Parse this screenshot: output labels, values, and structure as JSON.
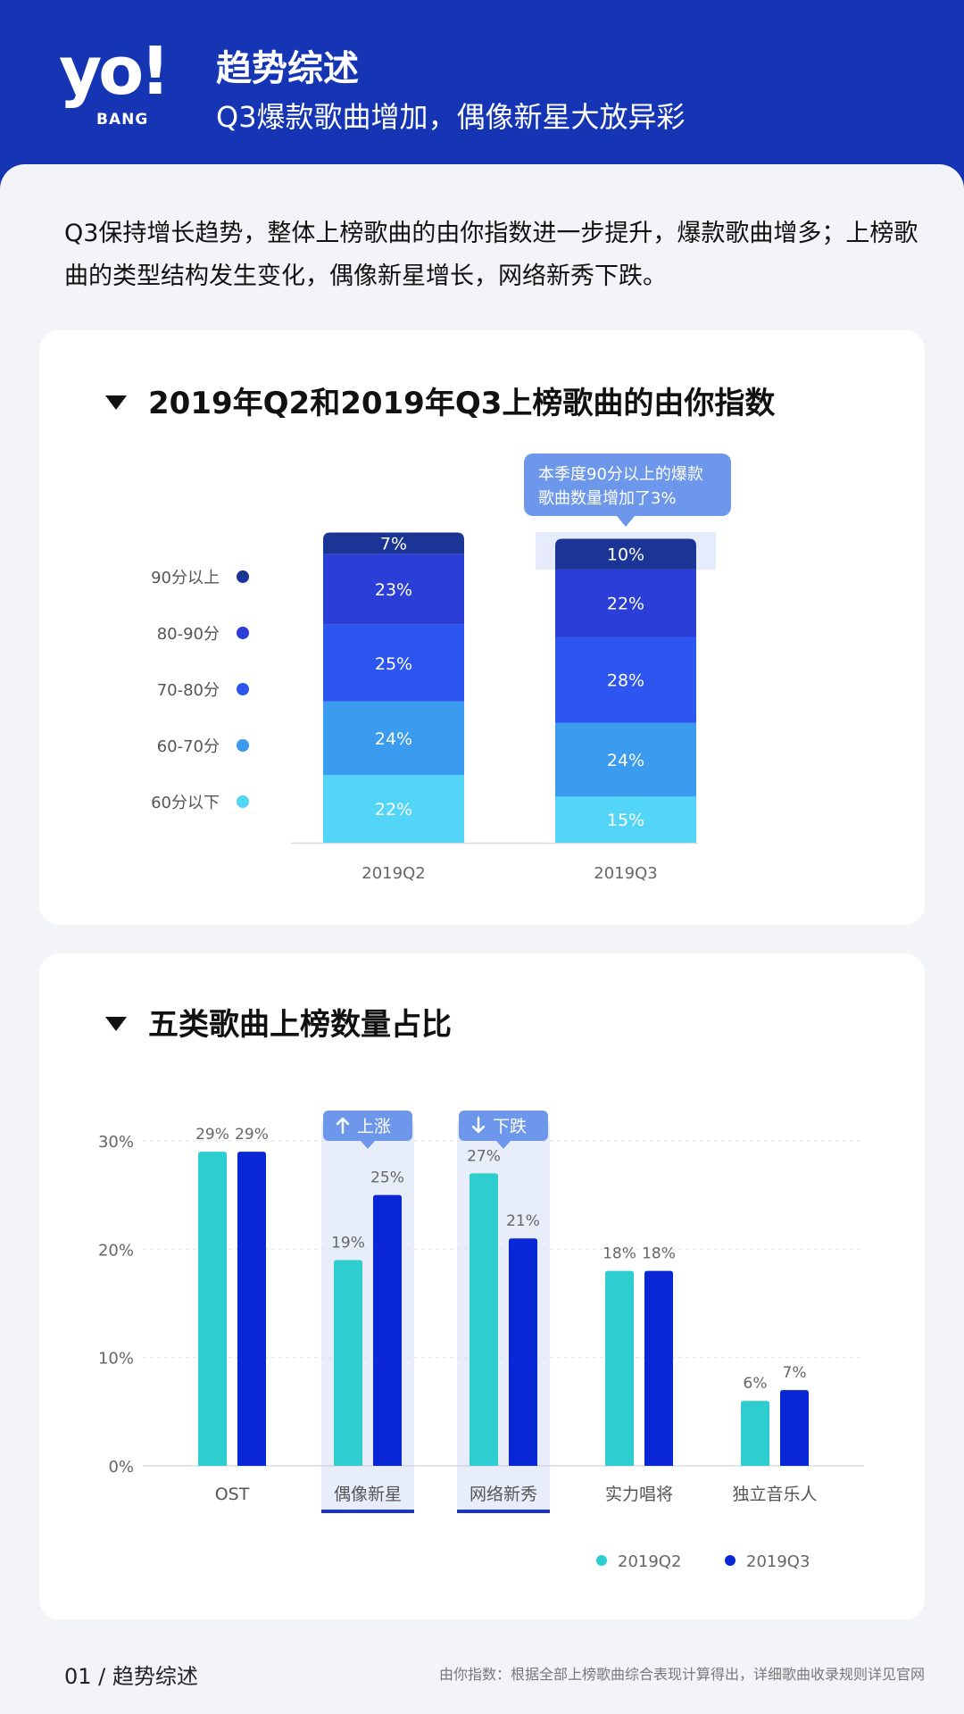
{
  "header": {
    "logo_main": "yo!",
    "logo_sub": "BANG",
    "title": "趋势综述",
    "subtitle": "Q3爆款歌曲增加，偶像新星大放异彩"
  },
  "intro": "Q3保持增长趋势，整体上榜歌曲的由你指数进一步提升，爆款歌曲增多；上榜歌曲的类型结构发生变化，偶像新星增长，网络新秀下跌。",
  "chart_data": [
    {
      "type": "bar",
      "stacked": true,
      "title": "2019年Q2和2019年Q3上榜歌曲的由你指数",
      "categories": [
        "2019Q2",
        "2019Q3"
      ],
      "series": [
        {
          "name": "60分以下",
          "values": [
            22,
            15
          ],
          "color": "#52d5f6"
        },
        {
          "name": "60-70分",
          "values": [
            24,
            24
          ],
          "color": "#3a9bef"
        },
        {
          "name": "70-80分",
          "values": [
            25,
            28
          ],
          "color": "#2d55f0"
        },
        {
          "name": "80-90分",
          "values": [
            23,
            22
          ],
          "color": "#2b3fd8"
        },
        {
          "name": "90分以上",
          "values": [
            7,
            10
          ],
          "color": "#1a3596"
        }
      ],
      "value_suffix": "%",
      "annotation": "本季度90分以上的爆款歌曲数量增加了3%",
      "legend_position": "left"
    },
    {
      "type": "bar",
      "title": "五类歌曲上榜数量占比",
      "categories": [
        "OST",
        "偶像新星",
        "网络新秀",
        "实力唱将",
        "独立音乐人"
      ],
      "series": [
        {
          "name": "2019Q2",
          "values": [
            29,
            19,
            27,
            18,
            6
          ],
          "color": "#2ecdd0"
        },
        {
          "name": "2019Q3",
          "values": [
            29,
            25,
            21,
            18,
            7
          ],
          "color": "#0a27d6"
        }
      ],
      "ylim": [
        0,
        30
      ],
      "yticks": [
        "0%",
        "10%",
        "20%",
        "30%"
      ],
      "value_suffix": "%",
      "grid": true,
      "legend_position": "bottom-right",
      "badges": [
        {
          "category": "偶像新星",
          "label": "上涨",
          "icon": "arrow-up-icon"
        },
        {
          "category": "网络新秀",
          "label": "下跌",
          "icon": "arrow-down-icon"
        }
      ]
    }
  ],
  "footer": {
    "left": "01 / 趋势综述",
    "right": "由你指数：根据全部上榜歌曲综合表现计算得出，详细歌曲收录规则详见官网"
  }
}
